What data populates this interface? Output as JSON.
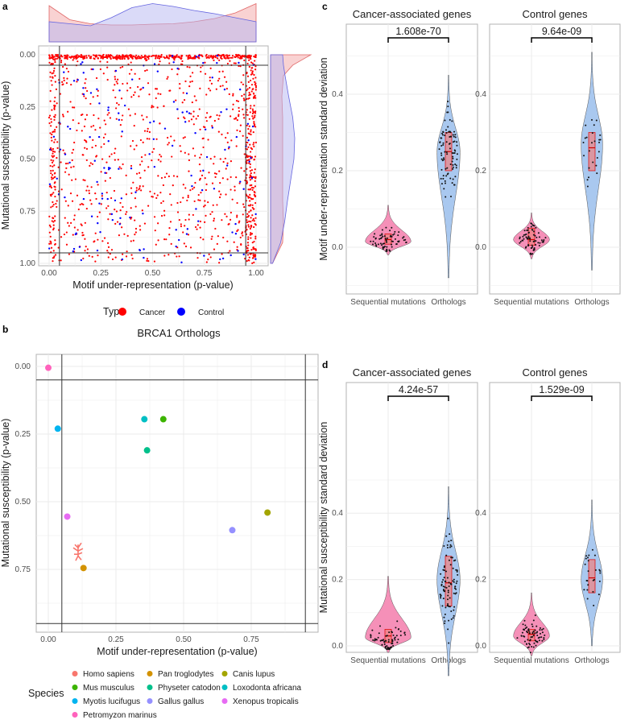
{
  "chart_data": [
    {
      "panel": "a",
      "type": "scatter",
      "xlabel": "Motif under-representation (p-value)",
      "ylabel": "Mutational susceptibility (p-value)",
      "xticks": [
        "0.00",
        "0.25",
        "0.50",
        "0.75",
        "1.00"
      ],
      "yticks": [
        "0.00",
        "0.25",
        "0.50",
        "0.75",
        "1.00"
      ],
      "xlim": [
        0,
        1
      ],
      "ylim": [
        0,
        1
      ],
      "y_reversed": true,
      "thresholds": [
        0.05,
        0.95
      ],
      "legend": {
        "title": "Type",
        "entries": [
          {
            "label": "Cancer",
            "color": "#ff0000"
          },
          {
            "label": "Control",
            "color": "#0000ff"
          }
        ],
        "placement": "bottom"
      },
      "series": [
        {
          "name": "Cancer",
          "color": "#ff0000",
          "approx_count": 1500,
          "distribution": "concentrated near y=0 and x=1, otherwise uniform"
        },
        {
          "name": "Control",
          "color": "#0000ff",
          "approx_count": 150,
          "distribution": "uniform"
        }
      ],
      "marginal_x_density": {
        "x": [
          0,
          0.1,
          0.2,
          0.3,
          0.4,
          0.5,
          0.6,
          0.7,
          0.8,
          0.9,
          1
        ],
        "Cancer": [
          0.9,
          0.55,
          0.45,
          0.42,
          0.42,
          0.44,
          0.45,
          0.5,
          0.58,
          0.72,
          0.95
        ],
        "Control": [
          0.5,
          0.45,
          0.4,
          0.6,
          0.85,
          0.95,
          0.88,
          0.78,
          0.7,
          0.6,
          0.5
        ]
      },
      "marginal_y_density": {
        "y": [
          0,
          0.05,
          0.1,
          0.2,
          0.3,
          0.4,
          0.5,
          0.6,
          0.7,
          0.8,
          0.9,
          1
        ],
        "Cancer": [
          1.0,
          0.55,
          0.32,
          0.28,
          0.3,
          0.3,
          0.3,
          0.3,
          0.3,
          0.32,
          0.3,
          0.05
        ],
        "Control": [
          0.3,
          0.32,
          0.36,
          0.45,
          0.55,
          0.6,
          0.58,
          0.5,
          0.42,
          0.35,
          0.25,
          0.05
        ]
      }
    },
    {
      "panel": "b",
      "type": "scatter",
      "title": "BRCA1 Orthologs",
      "xlabel": "Motif under-representation (p-value)",
      "ylabel": "Mutational susceptibility (p-value)",
      "xticks": [
        "0.00",
        "0.25",
        "0.50",
        "0.75"
      ],
      "yticks": [
        "0.00",
        "0.25",
        "0.50",
        "0.75"
      ],
      "thresholds": [
        0.05,
        0.95
      ],
      "legend_title": "Species",
      "points": [
        {
          "species": "Homo sapiens",
          "color": "#F8766D",
          "x": 0.11,
          "y": 0.7
        },
        {
          "species": "Pan troglodytes",
          "color": "#D39200",
          "x": 0.13,
          "y": 0.745
        },
        {
          "species": "Canis lupus",
          "color": "#A3A500",
          "x": 0.81,
          "y": 0.54
        },
        {
          "species": "Mus musculus",
          "color": "#3CB400",
          "x": 0.425,
          "y": 0.195
        },
        {
          "species": "Physeter catodon",
          "color": "#00C08B",
          "x": 0.365,
          "y": 0.31
        },
        {
          "species": "Loxodonta africana",
          "color": "#00BFC4",
          "x": 0.355,
          "y": 0.195
        },
        {
          "species": "Myotis lucifugus",
          "color": "#00B4F0",
          "x": 0.035,
          "y": 0.23
        },
        {
          "species": "Gallus gallus",
          "color": "#9590FF",
          "x": 0.68,
          "y": 0.605
        },
        {
          "species": "Xenopus tropicalis",
          "color": "#E76BF3",
          "x": 0.07,
          "y": 0.555
        },
        {
          "species": "Petromyzon marinus",
          "color": "#FF62BC",
          "x": 0.0,
          "y": 0.005
        }
      ]
    },
    {
      "panel": "c",
      "type": "violin",
      "ylabel": "Motif under-representation standard deviation",
      "categories": [
        "Sequential mutations",
        "Orthologs"
      ],
      "yticks": [
        "0.0",
        "0.2",
        "0.4"
      ],
      "facets": [
        {
          "title": "Cancer-associated genes",
          "pvalue": "1.608e-70",
          "groups": [
            {
              "min": -0.02,
              "max": 0.11,
              "mode": 0.015,
              "q1": 0.008,
              "median": 0.02,
              "q3": 0.035
            },
            {
              "min": -0.08,
              "max": 0.45,
              "mode": 0.25,
              "q1": 0.2,
              "median": 0.25,
              "q3": 0.3
            }
          ]
        },
        {
          "title": "Control genes",
          "pvalue": "9.64e-09",
          "groups": [
            {
              "min": -0.03,
              "max": 0.09,
              "mode": 0.02,
              "q1": 0.005,
              "median": 0.02,
              "q3": 0.05
            },
            {
              "min": -0.06,
              "max": 0.51,
              "mode": 0.27,
              "q1": 0.2,
              "median": 0.26,
              "q3": 0.3
            }
          ]
        }
      ]
    },
    {
      "panel": "d",
      "type": "violin",
      "ylabel": "Mutational susceptibility standard deviation",
      "categories": [
        "Sequential mutations",
        "Orthologs"
      ],
      "yticks": [
        "0.0",
        "0.2",
        "0.4"
      ],
      "facets": [
        {
          "title": "Cancer-associated genes",
          "pvalue": "4.24e-57",
          "groups": [
            {
              "min": -0.02,
              "max": 0.21,
              "mode": 0.025,
              "q1": 0.01,
              "median": 0.03,
              "q3": 0.05
            },
            {
              "min": -0.09,
              "max": 0.48,
              "mode": 0.2,
              "q1": 0.12,
              "median": 0.19,
              "q3": 0.27
            }
          ]
        },
        {
          "title": "Control genes",
          "pvalue": "1.529e-09",
          "groups": [
            {
              "min": -0.03,
              "max": 0.16,
              "mode": 0.03,
              "q1": 0.015,
              "median": 0.035,
              "q3": 0.05
            },
            {
              "min": 0.0,
              "max": 0.44,
              "mode": 0.2,
              "q1": 0.16,
              "median": 0.205,
              "q3": 0.26
            }
          ]
        }
      ]
    }
  ],
  "panel_letters": [
    "a",
    "b",
    "c",
    "d"
  ]
}
